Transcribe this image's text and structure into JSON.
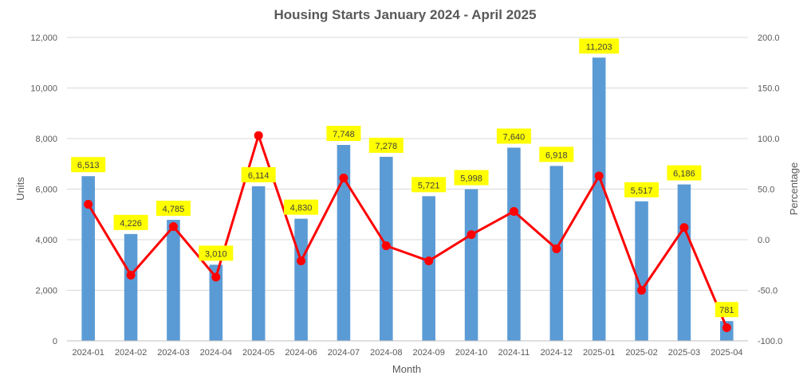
{
  "chart_data": {
    "type": "bar",
    "title": "Housing Starts January 2024 - April 2025",
    "xlabel": "Month",
    "ylabel": "Units",
    "y2label": "Percentage",
    "categories": [
      "2024-01",
      "2024-02",
      "2024-03",
      "2024-04",
      "2024-05",
      "2024-06",
      "2024-07",
      "2024-08",
      "2024-09",
      "2024-10",
      "2024-11",
      "2024-12",
      "2025-01",
      "2025-02",
      "2025-03",
      "2025-04"
    ],
    "ylim": [
      0,
      12000
    ],
    "y2lim": [
      -100,
      200
    ],
    "yticks": [
      "0",
      "2,000",
      "4,000",
      "6,000",
      "8,000",
      "10,000",
      "12,000"
    ],
    "y2ticks": [
      "-100.0",
      "-50.0",
      "0.0",
      "50.0",
      "100.0",
      "150.0",
      "200.0"
    ],
    "grid": true,
    "series": [
      {
        "type": "bar",
        "axis": "left",
        "color": "#5B9BD5",
        "values": [
          6513,
          4226,
          4785,
          3010,
          6114,
          4830,
          7748,
          7278,
          5721,
          5998,
          7640,
          6918,
          11203,
          5517,
          6186,
          781
        ],
        "labels": [
          "6,513",
          "4,226",
          "4,785",
          "3,010",
          "6,114",
          "4,830",
          "7,748",
          "7,278",
          "5,721",
          "5,998",
          "7,640",
          "6,918",
          "11,203",
          "5,517",
          "6,186",
          "781"
        ]
      },
      {
        "type": "line",
        "axis": "right",
        "color": "#FF0000",
        "values": [
          35,
          -35,
          13,
          -37,
          103,
          -21,
          61,
          -6,
          -21,
          5,
          28,
          -9,
          63,
          -50,
          12,
          -87
        ]
      }
    ],
    "label_bg": "#FFFF00"
  }
}
